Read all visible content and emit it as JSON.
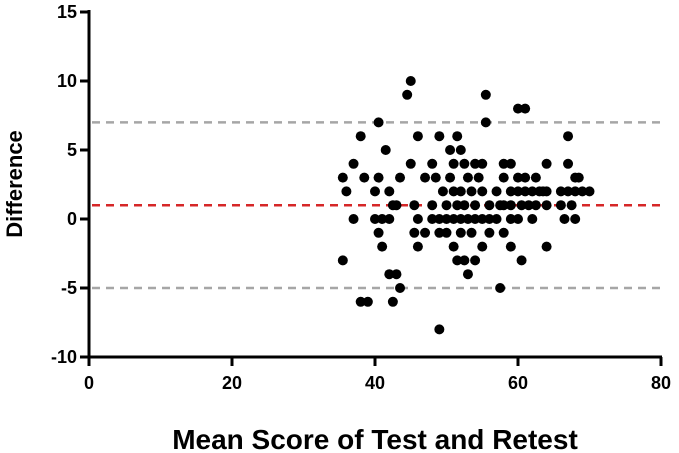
{
  "chart_data": {
    "type": "scatter",
    "title": "",
    "xlabel": "Mean Score of Test and Retest",
    "ylabel": "Difference",
    "xlim": [
      0,
      80
    ],
    "ylim": [
      -10,
      15
    ],
    "xticks": [
      0,
      20,
      40,
      60,
      80
    ],
    "yticks": [
      -10,
      -5,
      0,
      5,
      10,
      15
    ],
    "xtick_labels": [
      "0",
      "20",
      "40",
      "60",
      "80"
    ],
    "ytick_labels": [
      "-10",
      "-5",
      "0",
      "5",
      "10",
      "15"
    ],
    "grid": false,
    "reference_lines": [
      {
        "name": "upper limit of agreement",
        "y": 7,
        "color": "#a6a6a6",
        "style": "dashed"
      },
      {
        "name": "mean difference",
        "y": 1,
        "color": "#d62728",
        "style": "dashed"
      },
      {
        "name": "lower limit of agreement",
        "y": -5,
        "color": "#a6a6a6",
        "style": "dashed"
      }
    ],
    "series": [
      {
        "color": "#000000",
        "points": [
          [
            35.5,
            3
          ],
          [
            35.5,
            -3
          ],
          [
            36,
            2
          ],
          [
            37,
            4
          ],
          [
            37,
            0
          ],
          [
            38,
            6
          ],
          [
            38,
            -6
          ],
          [
            38.5,
            3
          ],
          [
            39,
            -6
          ],
          [
            40,
            2
          ],
          [
            40,
            0
          ],
          [
            40.5,
            7
          ],
          [
            40.5,
            3
          ],
          [
            40.5,
            -1
          ],
          [
            41,
            0
          ],
          [
            41,
            -2
          ],
          [
            41.5,
            5
          ],
          [
            42,
            2
          ],
          [
            42,
            0
          ],
          [
            42,
            -4
          ],
          [
            42.5,
            1
          ],
          [
            42.5,
            -6
          ],
          [
            43,
            1
          ],
          [
            43,
            -4
          ],
          [
            43.5,
            3
          ],
          [
            43.5,
            -5
          ],
          [
            44.5,
            9
          ],
          [
            45,
            10
          ],
          [
            45,
            4
          ],
          [
            45.5,
            1
          ],
          [
            45.5,
            -1
          ],
          [
            46,
            6
          ],
          [
            46,
            0
          ],
          [
            46,
            -2
          ],
          [
            47,
            3
          ],
          [
            47,
            -1
          ],
          [
            48,
            4
          ],
          [
            48,
            1
          ],
          [
            48,
            0
          ],
          [
            48.5,
            3
          ],
          [
            49,
            6
          ],
          [
            49,
            0
          ],
          [
            49,
            -1
          ],
          [
            49,
            -8
          ],
          [
            49.5,
            2
          ],
          [
            50,
            1
          ],
          [
            50,
            0
          ],
          [
            50,
            -1
          ],
          [
            50.5,
            5
          ],
          [
            50.5,
            3
          ],
          [
            51,
            4
          ],
          [
            51,
            2
          ],
          [
            51,
            0
          ],
          [
            51,
            -2
          ],
          [
            51.5,
            6
          ],
          [
            51.5,
            1
          ],
          [
            51.5,
            -3
          ],
          [
            52,
            5
          ],
          [
            52,
            2
          ],
          [
            52,
            0
          ],
          [
            52,
            -1
          ],
          [
            52.5,
            4
          ],
          [
            52.5,
            1
          ],
          [
            52.5,
            -3
          ],
          [
            53,
            3
          ],
          [
            53,
            0
          ],
          [
            53,
            -4
          ],
          [
            53.5,
            2
          ],
          [
            53.5,
            -1
          ],
          [
            54,
            4
          ],
          [
            54,
            1
          ],
          [
            54,
            0
          ],
          [
            54,
            -3
          ],
          [
            54.5,
            3
          ],
          [
            55,
            4
          ],
          [
            55,
            2
          ],
          [
            55,
            0
          ],
          [
            55,
            -2
          ],
          [
            55.5,
            9
          ],
          [
            55.5,
            7
          ],
          [
            56,
            1
          ],
          [
            56,
            0
          ],
          [
            56,
            -1
          ],
          [
            57,
            2
          ],
          [
            57,
            0
          ],
          [
            57.5,
            1
          ],
          [
            57.5,
            -5
          ],
          [
            58,
            4
          ],
          [
            58,
            3
          ],
          [
            58,
            1
          ],
          [
            58,
            -1
          ],
          [
            59,
            4
          ],
          [
            59,
            2
          ],
          [
            59,
            1
          ],
          [
            59,
            0
          ],
          [
            59,
            -2
          ],
          [
            60,
            8
          ],
          [
            60,
            3
          ],
          [
            60,
            2
          ],
          [
            60,
            0
          ],
          [
            60.5,
            1
          ],
          [
            60.5,
            -3
          ],
          [
            61,
            8
          ],
          [
            61,
            3
          ],
          [
            61,
            2
          ],
          [
            61.5,
            1
          ],
          [
            62,
            2
          ],
          [
            62,
            0
          ],
          [
            62.5,
            3
          ],
          [
            62.5,
            1
          ],
          [
            63,
            2
          ],
          [
            63.5,
            2
          ],
          [
            64,
            4
          ],
          [
            64,
            2
          ],
          [
            64,
            1
          ],
          [
            64,
            -2
          ],
          [
            66,
            2
          ],
          [
            66,
            1
          ],
          [
            66.5,
            0
          ],
          [
            67,
            6
          ],
          [
            67,
            4
          ],
          [
            67,
            2
          ],
          [
            67.5,
            1
          ],
          [
            68,
            3
          ],
          [
            68,
            2
          ],
          [
            68,
            0
          ],
          [
            68.5,
            3
          ],
          [
            69,
            2
          ],
          [
            70,
            2
          ]
        ]
      }
    ]
  }
}
